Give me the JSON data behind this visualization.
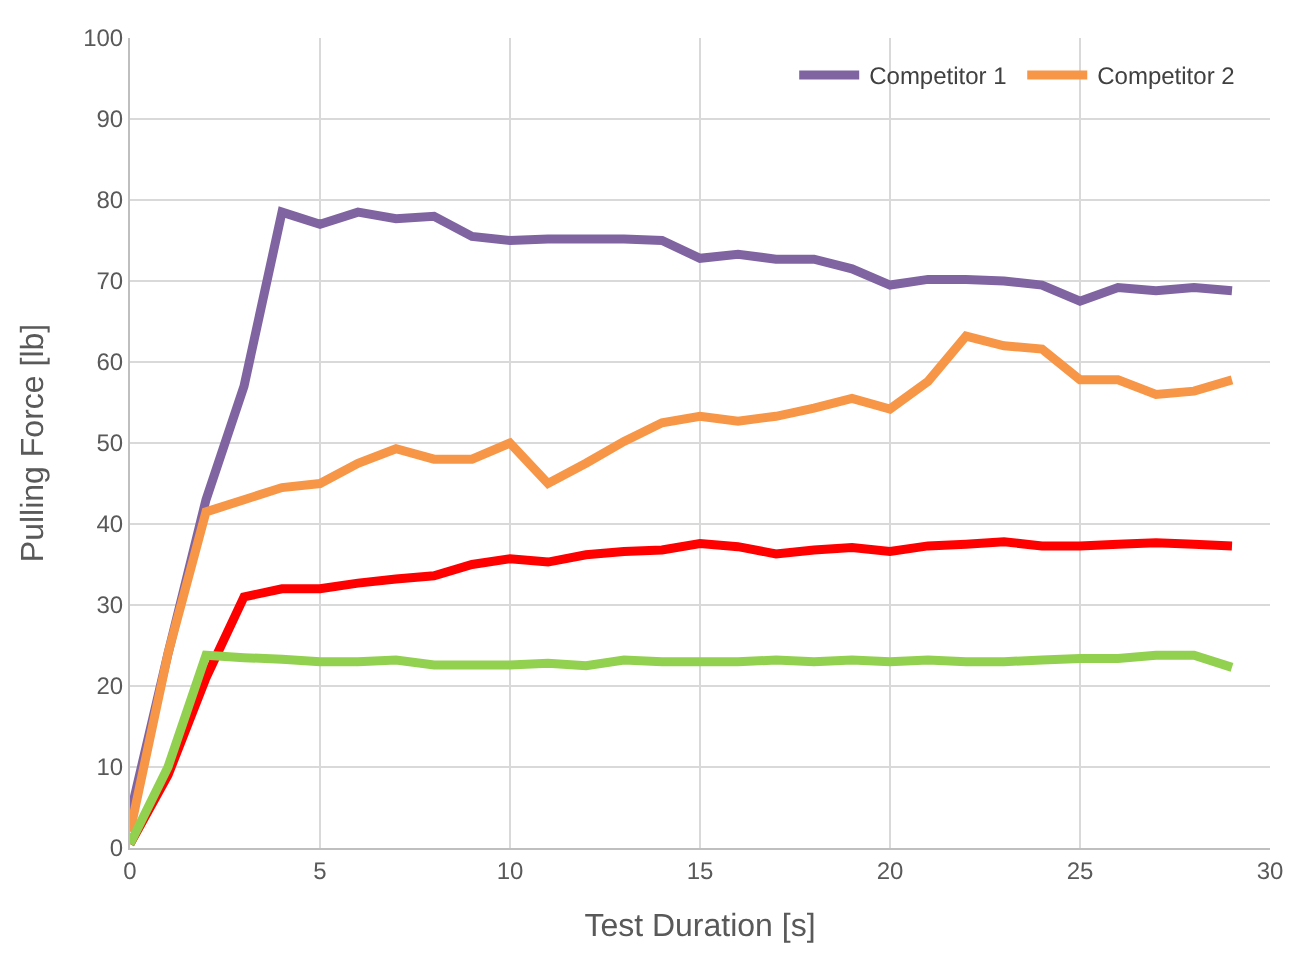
{
  "chart_data": {
    "type": "line",
    "xlabel": "Test Duration [s]",
    "ylabel": "Pulling Force [lb]",
    "x": [
      0,
      1,
      2,
      3,
      4,
      5,
      6,
      7,
      8,
      9,
      10,
      11,
      12,
      13,
      14,
      15,
      16,
      17,
      18,
      19,
      20,
      21,
      22,
      23,
      24,
      25,
      26,
      27,
      28,
      29
    ],
    "series": [
      {
        "name": "Competitor 1",
        "color": "#8064a2",
        "values": [
          4,
          24,
          43,
          57,
          78.5,
          77,
          78.5,
          77.7,
          78,
          75.5,
          75,
          75.2,
          75.2,
          75.2,
          75,
          72.8,
          73.3,
          72.7,
          72.7,
          71.5,
          69.5,
          70.2,
          70.2,
          70,
          69.5,
          67.5,
          69.2,
          68.8,
          69.2,
          68.8
        ]
      },
      {
        "name": "Competitor 2",
        "color": "#f79646",
        "values": [
          2,
          24,
          41.5,
          43,
          44.5,
          45,
          47.5,
          49.3,
          48,
          48,
          50,
          45,
          47.5,
          50.2,
          52.5,
          53.3,
          52.7,
          53.3,
          54.3,
          55.5,
          54.2,
          57.6,
          63.2,
          62,
          61.6,
          57.8,
          57.8,
          56,
          56.4,
          57.8
        ]
      },
      {
        "color": "#ff0000",
        "values": [
          0.5,
          9,
          21,
          31,
          32,
          32,
          32.7,
          33.2,
          33.6,
          35,
          35.7,
          35.3,
          36.2,
          36.6,
          36.8,
          37.6,
          37.2,
          36.3,
          36.8,
          37.1,
          36.6,
          37.3,
          37.5,
          37.8,
          37.3,
          37.3,
          37.5,
          37.7,
          37.5,
          37.3
        ]
      },
      {
        "color": "#92d050",
        "values": [
          0.5,
          10,
          23.8,
          23.5,
          23.3,
          23,
          23,
          23.2,
          22.6,
          22.6,
          22.6,
          22.8,
          22.5,
          23.2,
          23,
          23,
          23,
          23.2,
          23,
          23.2,
          23,
          23.2,
          23,
          23,
          23.2,
          23.4,
          23.4,
          23.8,
          23.8,
          22.3
        ]
      }
    ],
    "xlim": [
      0,
      30
    ],
    "xticks": [
      0,
      5,
      10,
      15,
      20,
      25,
      30
    ],
    "ylim": [
      0,
      100
    ],
    "yticks": [
      0,
      10,
      20,
      30,
      40,
      50,
      60,
      70,
      80,
      90,
      100
    ],
    "grid": true,
    "legend": "top right",
    "marker": "none",
    "line_style": "solid"
  }
}
